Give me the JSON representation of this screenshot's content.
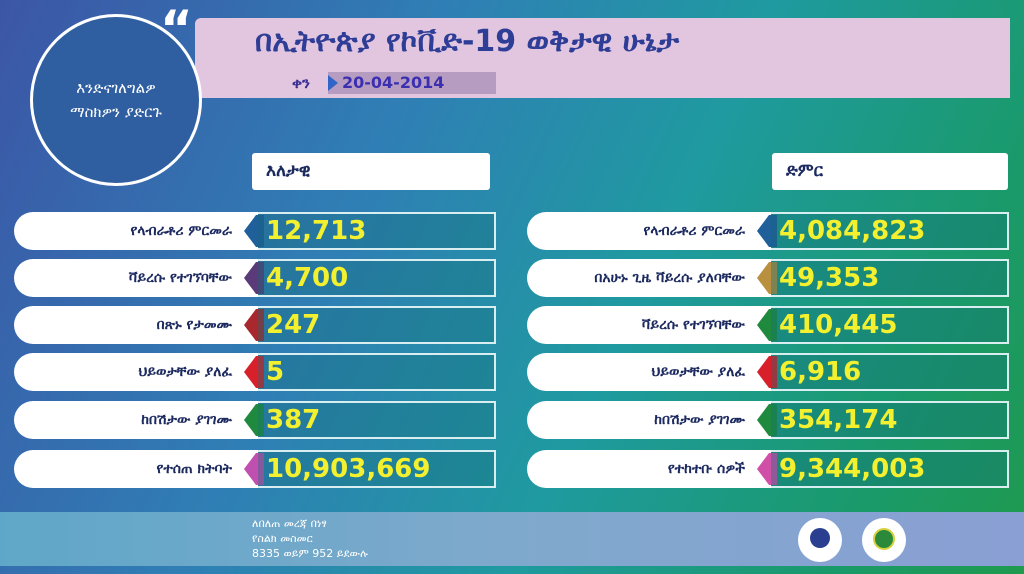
{
  "header": {
    "title": "በኢትዮጵያ የኮቪድ-19 ወቅታዊ ሁኔታ",
    "date_label": "ቀን",
    "date": "20-04-2014"
  },
  "bubble": {
    "text": "እንድናገለግልዎ ማስክዎን ያድርጉ"
  },
  "daily": {
    "heading": "እለታዊ",
    "rows": [
      {
        "label": "የላብራቶሪ ምርመራ",
        "value": "12,713",
        "color": "#1f5f9a"
      },
      {
        "label": "ቫይረሱ የተገኘባቸው",
        "value": "4,700",
        "color": "#5a3a78"
      },
      {
        "label": "በጽኑ የታመሙ",
        "value": "247",
        "color": "#a8282e"
      },
      {
        "label": "ህይወታቸው ያለፈ",
        "value": "5",
        "color": "#d8202a"
      },
      {
        "label": "ከበሽታው ያገገሙ",
        "value": "387",
        "color": "#1f8a3e"
      },
      {
        "label": "የተሰጠ ክትባት",
        "value": "10,903,669",
        "color": "#c050b0"
      }
    ]
  },
  "total": {
    "heading": "ድምር",
    "rows": [
      {
        "label": "የላብራቶሪ ምርመራ",
        "value": "4,084,823",
        "color": "#1f5f9a"
      },
      {
        "label": "በአሁኑ ጊዜ ቫይረሱ ያለባቸው",
        "value": "49,353",
        "color": "#b89040"
      },
      {
        "label": "ቫይረሱ  የተገኘባቸው",
        "value": "410,445",
        "color": "#1f8a3e"
      },
      {
        "label": "ህይወታቸው ያለፈ",
        "value": "6,916",
        "color": "#d8202a"
      },
      {
        "label": "ከበሽታው ያገገሙ",
        "value": "354,174",
        "color": "#1f8a3e"
      },
      {
        "label": "የተከተቡ ሰዎች",
        "value": "9,344,003",
        "color": "#d050a8"
      }
    ]
  },
  "footer": {
    "line1": "ለበለጠ መረጃ በነፃ",
    "line2": "የስልክ መስመር",
    "line3": "8335 ወይም 952 ይደውሉ"
  }
}
